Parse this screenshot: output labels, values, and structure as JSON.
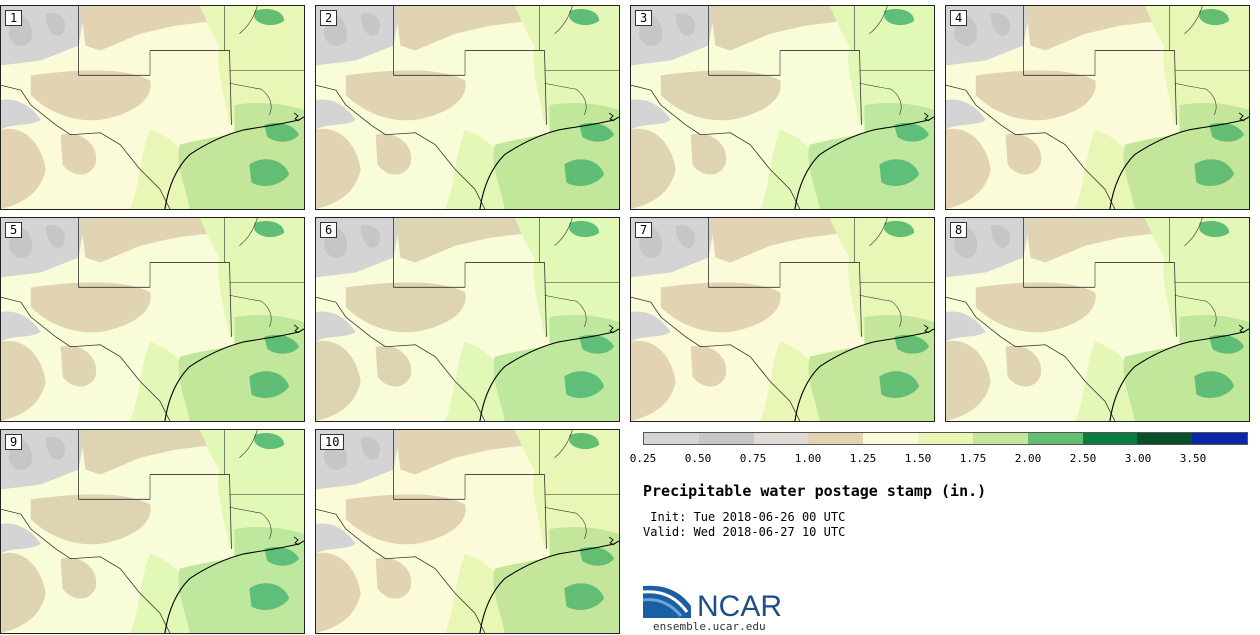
{
  "panels": [
    {
      "label": "1"
    },
    {
      "label": "2"
    },
    {
      "label": "3"
    },
    {
      "label": "4"
    },
    {
      "label": "5"
    },
    {
      "label": "6"
    },
    {
      "label": "7"
    },
    {
      "label": "8"
    },
    {
      "label": "9"
    },
    {
      "label": "10"
    }
  ],
  "legend": {
    "colors": [
      "#d4d4d4",
      "#c6c6c6",
      "#dedbd2",
      "#e2d3b3",
      "#fbfbd9",
      "#e8f6b6",
      "#c4e69a",
      "#63bd73",
      "#0b7c3e",
      "#0b4f2a",
      "#0a27a8"
    ],
    "ticks": [
      "0.25",
      "0.50",
      "0.75",
      "1.00",
      "1.25",
      "1.50",
      "1.75",
      "2.00",
      "2.50",
      "3.00",
      "3.50"
    ]
  },
  "title": "Precipitable water postage stamp (in.)",
  "init": " Init: Tue 2018-06-26 00 UTC",
  "valid": "Valid: Wed 2018-06-27 10 UTC",
  "logo": {
    "text": "NCAR",
    "url": "ensemble.ucar.edu"
  }
}
